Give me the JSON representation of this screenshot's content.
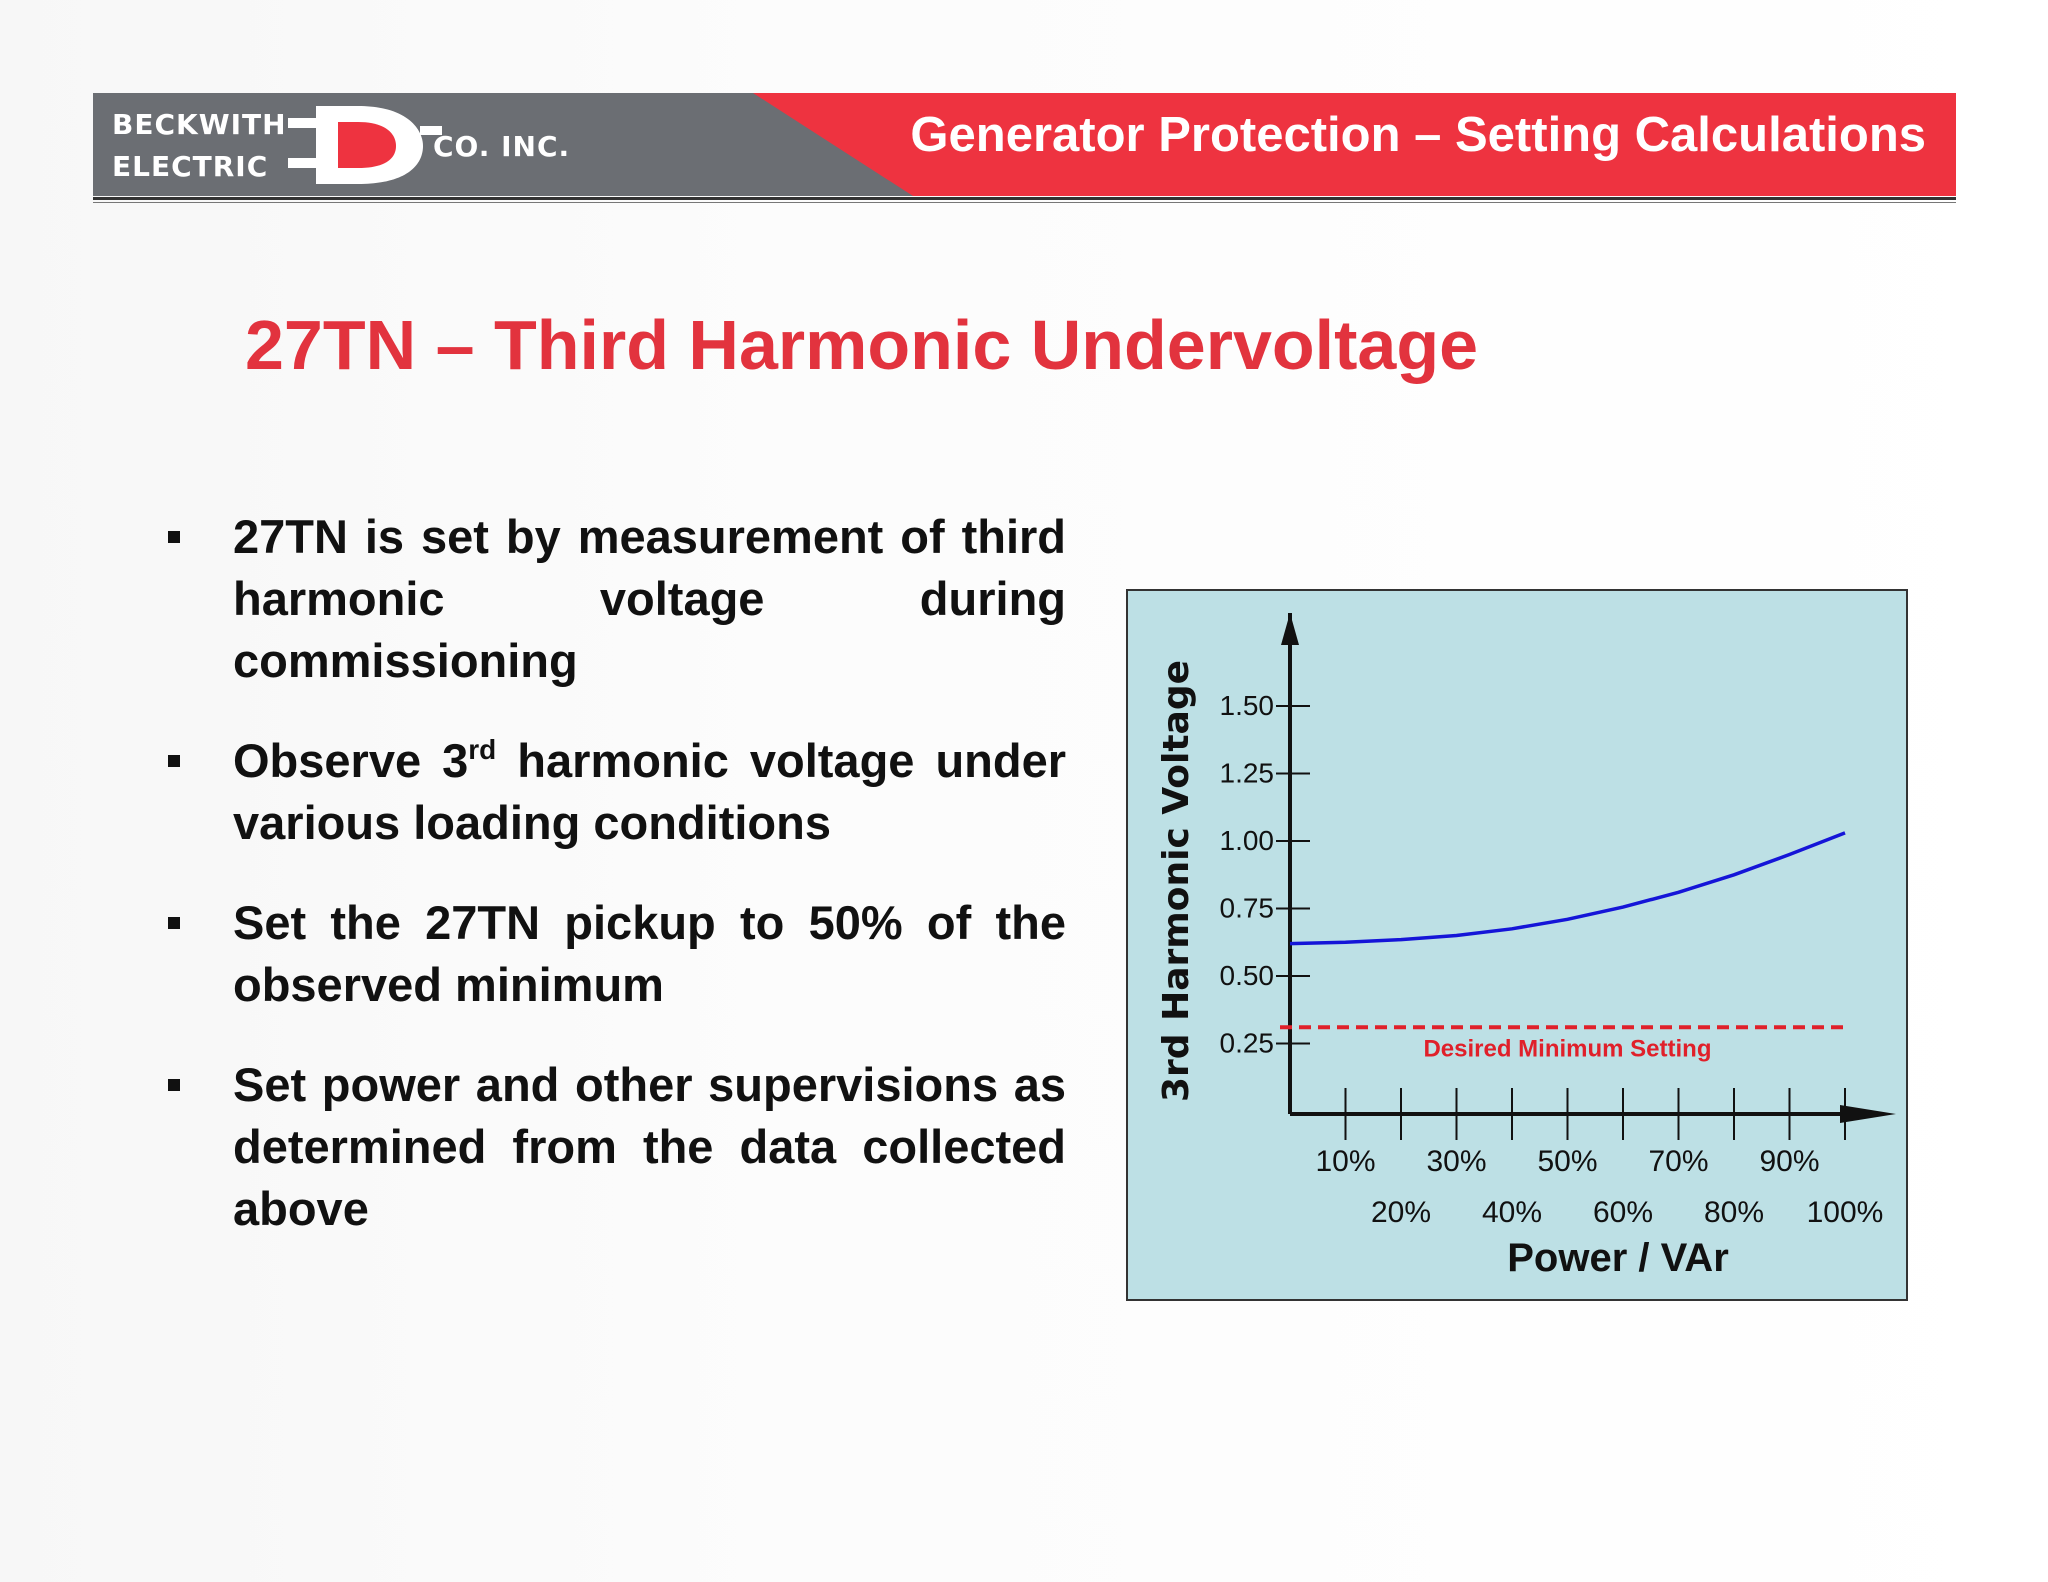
{
  "header": {
    "logo": {
      "line1": "BECKWITH",
      "line2": "ELECTRIC",
      "suffix": "CO. INC."
    },
    "title": "Generator Protection – Setting Calculations"
  },
  "slide": {
    "title": "27TN – Third Harmonic Undervoltage",
    "bullets": [
      {
        "text": "27TN is set by measurement of third harmonic voltage during commissioning"
      },
      {
        "pre": "Observe 3",
        "sup": "rd",
        "post": " harmonic voltage under various loading conditions"
      },
      {
        "text": "Set the 27TN pickup to 50% of the observed minimum"
      },
      {
        "text": "Set power and other supervisions as determined from the data collected above"
      }
    ]
  },
  "colors": {
    "accent_red": "#e2333e",
    "banner_gray": "#6b6e73",
    "curve_blue": "#1515d8",
    "chart_bg": "#bde0e5"
  },
  "chart_data": {
    "type": "line",
    "xlabel": "Power / VAr",
    "ylabel": "3rd Harmonic Voltage",
    "x_ticks": [
      "10%",
      "20%",
      "30%",
      "40%",
      "50%",
      "60%",
      "70%",
      "80%",
      "90%",
      "100%"
    ],
    "y_ticks": [
      "0.25",
      "0.50",
      "0.75",
      "1.00",
      "1.25",
      "1.50"
    ],
    "y_tick_values": [
      0.25,
      0.5,
      0.75,
      1.0,
      1.25,
      1.5
    ],
    "xlim": [
      0,
      105
    ],
    "ylim": [
      0,
      1.55
    ],
    "series": [
      {
        "x": [
          0,
          10,
          20,
          30,
          40,
          50,
          60,
          70,
          80,
          90,
          100
        ],
        "y": [
          0.62,
          0.625,
          0.635,
          0.65,
          0.675,
          0.71,
          0.755,
          0.81,
          0.875,
          0.95,
          1.03
        ]
      }
    ],
    "threshold": {
      "y": 0.31,
      "label": "Desired Minimum Setting",
      "style": "dashed"
    },
    "grid": false
  }
}
